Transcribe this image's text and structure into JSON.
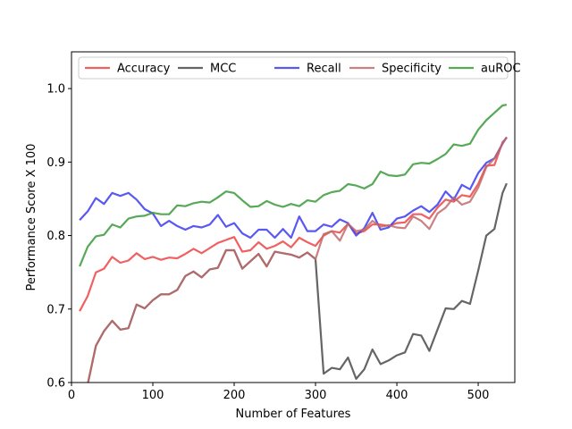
{
  "chart_data": {
    "type": "line",
    "title": "",
    "xlabel": "Number of Features",
    "ylabel": "Performance Score X 100",
    "xlim": [
      0,
      545
    ],
    "ylim": [
      0.6,
      1.05
    ],
    "x_ticks": [
      0,
      100,
      200,
      300,
      400,
      500
    ],
    "y_ticks": [
      0.6,
      0.7,
      0.8,
      0.9,
      1.0
    ],
    "x_tick_labels": [
      "0",
      "100",
      "200",
      "300",
      "400",
      "500"
    ],
    "y_tick_labels": [
      "0.6",
      "0.7",
      "0.8",
      "0.9",
      "1.0"
    ],
    "grid": false,
    "legend_position": "top",
    "x": [
      10,
      20,
      30,
      40,
      50,
      60,
      70,
      80,
      90,
      100,
      110,
      120,
      130,
      140,
      150,
      160,
      170,
      180,
      190,
      200,
      210,
      220,
      230,
      240,
      250,
      260,
      270,
      280,
      290,
      300,
      310,
      320,
      330,
      340,
      350,
      360,
      370,
      380,
      390,
      400,
      410,
      420,
      430,
      440,
      450,
      460,
      470,
      480,
      490,
      500,
      510,
      520,
      530,
      535
    ],
    "series": [
      {
        "name": "Accuracy",
        "color": "#ef4444",
        "values": [
          0.697,
          0.718,
          0.75,
          0.755,
          0.771,
          0.763,
          0.766,
          0.776,
          0.768,
          0.771,
          0.767,
          0.77,
          0.769,
          0.775,
          0.782,
          0.776,
          0.783,
          0.79,
          0.794,
          0.798,
          0.778,
          0.78,
          0.791,
          0.782,
          0.786,
          0.792,
          0.784,
          0.797,
          0.791,
          0.786,
          0.8,
          0.806,
          0.804,
          0.816,
          0.803,
          0.806,
          0.815,
          0.815,
          0.813,
          0.817,
          0.818,
          0.829,
          0.829,
          0.823,
          0.838,
          0.849,
          0.846,
          0.855,
          0.853,
          0.87,
          0.895,
          0.896,
          0.927,
          0.933
        ]
      },
      {
        "name": "MCC",
        "color": "#4a4a4a",
        "values": [
          0.56,
          0.598,
          0.65,
          0.67,
          0.684,
          0.672,
          0.674,
          0.706,
          0.701,
          0.712,
          0.72,
          0.72,
          0.726,
          0.745,
          0.751,
          0.743,
          0.754,
          0.756,
          0.78,
          0.78,
          0.755,
          0.765,
          0.775,
          0.758,
          0.778,
          0.776,
          0.774,
          0.77,
          0.777,
          0.768,
          0.612,
          0.62,
          0.618,
          0.634,
          0.605,
          0.618,
          0.645,
          0.625,
          0.63,
          0.637,
          0.641,
          0.666,
          0.664,
          0.643,
          0.672,
          0.701,
          0.7,
          0.711,
          0.707,
          0.752,
          0.8,
          0.809,
          0.858,
          0.871
        ]
      },
      {
        "name": "Recall",
        "color": "#3b3bf0",
        "values": [
          0.821,
          0.833,
          0.851,
          0.843,
          0.858,
          0.854,
          0.858,
          0.849,
          0.836,
          0.83,
          0.813,
          0.82,
          0.813,
          0.808,
          0.813,
          0.811,
          0.815,
          0.828,
          0.812,
          0.817,
          0.803,
          0.797,
          0.808,
          0.808,
          0.797,
          0.809,
          0.797,
          0.826,
          0.806,
          0.806,
          0.815,
          0.812,
          0.822,
          0.817,
          0.8,
          0.81,
          0.831,
          0.808,
          0.811,
          0.823,
          0.826,
          0.834,
          0.84,
          0.832,
          0.842,
          0.86,
          0.849,
          0.869,
          0.863,
          0.885,
          0.899,
          0.905,
          0.925,
          0.934
        ]
      },
      {
        "name": "Specificity",
        "color": "#bf6b6b",
        "values": [
          0.56,
          0.598,
          0.65,
          0.67,
          0.684,
          0.672,
          0.674,
          0.706,
          0.701,
          0.712,
          0.72,
          0.72,
          0.726,
          0.745,
          0.751,
          0.743,
          0.754,
          0.756,
          0.78,
          0.78,
          0.755,
          0.765,
          0.775,
          0.758,
          0.778,
          0.776,
          0.774,
          0.77,
          0.777,
          0.768,
          0.802,
          0.806,
          0.793,
          0.816,
          0.806,
          0.808,
          0.82,
          0.812,
          0.814,
          0.811,
          0.81,
          0.826,
          0.82,
          0.809,
          0.83,
          0.838,
          0.852,
          0.842,
          0.846,
          0.865,
          0.893,
          0.905,
          0.925,
          0.934
        ]
      },
      {
        "name": "auROC",
        "color": "#3a9a3a",
        "values": [
          0.758,
          0.785,
          0.799,
          0.801,
          0.815,
          0.811,
          0.823,
          0.826,
          0.827,
          0.831,
          0.829,
          0.829,
          0.841,
          0.84,
          0.844,
          0.846,
          0.845,
          0.852,
          0.86,
          0.858,
          0.848,
          0.839,
          0.84,
          0.847,
          0.842,
          0.839,
          0.843,
          0.84,
          0.848,
          0.846,
          0.855,
          0.859,
          0.861,
          0.87,
          0.868,
          0.864,
          0.87,
          0.887,
          0.882,
          0.881,
          0.883,
          0.897,
          0.899,
          0.898,
          0.904,
          0.911,
          0.924,
          0.922,
          0.925,
          0.944,
          0.957,
          0.967,
          0.977,
          0.978
        ]
      }
    ]
  }
}
